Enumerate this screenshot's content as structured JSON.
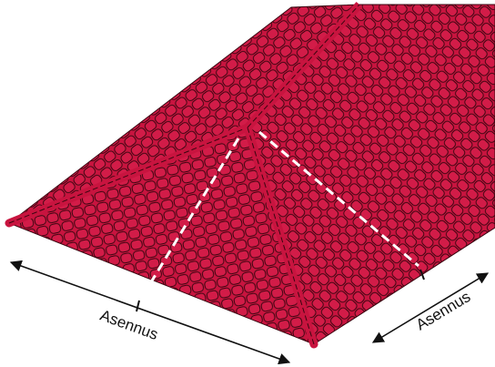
{
  "annotations": [
    {
      "label": "Asennus"
    },
    {
      "label": "Asennus"
    }
  ]
}
